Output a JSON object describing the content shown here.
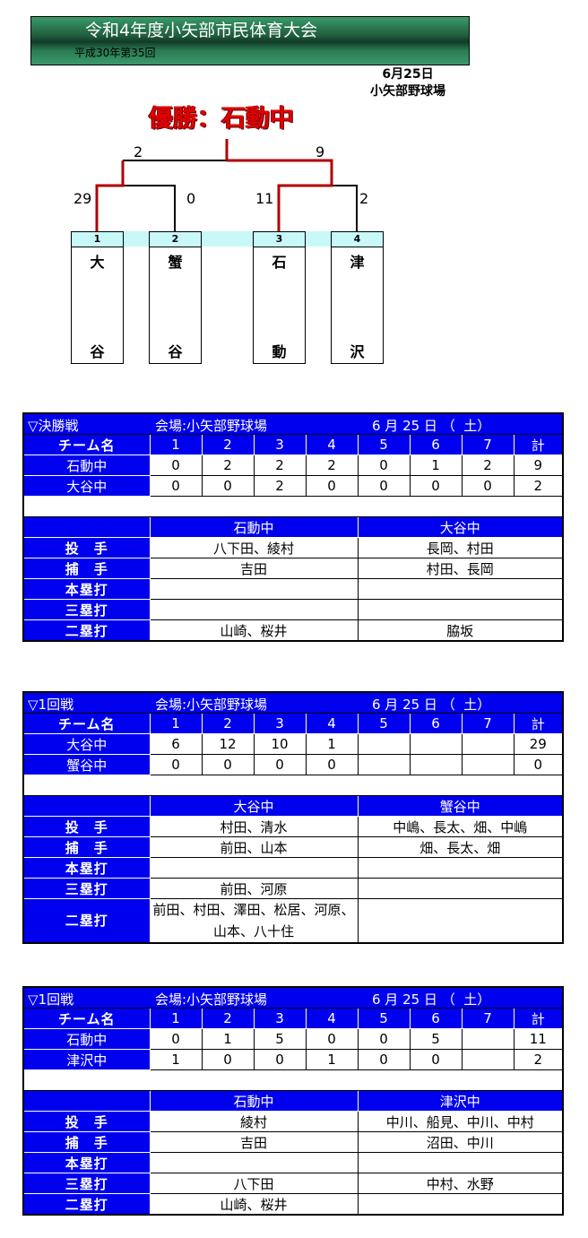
{
  "header": {
    "title": "令和4年度小矢部市民体育大会",
    "overlay_text": "平成30年第35回",
    "date": "6月25日",
    "venue": "小矢部野球場"
  },
  "champion": "優勝：石動中",
  "bracket": {
    "teams": [
      {
        "seed": "1",
        "top": "大",
        "bottom": "谷"
      },
      {
        "seed": "2",
        "top": "蟹",
        "bottom": "谷"
      },
      {
        "seed": "3",
        "top": "石",
        "bottom": "動"
      },
      {
        "seed": "4",
        "top": "津",
        "bottom": "沢"
      }
    ],
    "scores": {
      "r1_team1": "29",
      "r1_team2": "0",
      "r1_team3": "11",
      "r1_team4": "2",
      "final_left": "2",
      "final_right": "9"
    },
    "winner_color": "#b00000"
  },
  "colors": {
    "header_blue": "#0000ee",
    "band": "#c8f8f8"
  },
  "games": [
    {
      "round": "▽決勝戦",
      "venue": "会場:小矢部野球場",
      "date": "6 月 25 日 （  土）",
      "header": [
        "チーム名",
        "1",
        "2",
        "3",
        "4",
        "5",
        "6",
        "7",
        "計"
      ],
      "lines": [
        [
          "石動中",
          "0",
          "2",
          "2",
          "2",
          "0",
          "1",
          "2",
          "9"
        ],
        [
          "大谷中",
          "0",
          "0",
          "2",
          "0",
          "0",
          "0",
          "0",
          "2"
        ]
      ],
      "teams": [
        "石動中",
        "大谷中"
      ],
      "stats": [
        [
          "投　手",
          "八下田、綾村",
          "長岡、村田"
        ],
        [
          "捕　手",
          "吉田",
          "村田、長岡"
        ],
        [
          "本塁打",
          "",
          ""
        ],
        [
          "三塁打",
          "",
          ""
        ],
        [
          "二塁打",
          "山崎、桜井",
          "脇坂"
        ]
      ]
    },
    {
      "round": "▽1回戦",
      "venue": "会場:小矢部野球場",
      "date": "6 月 25 日 （  土）",
      "header": [
        "チーム名",
        "1",
        "2",
        "3",
        "4",
        "5",
        "6",
        "7",
        "計"
      ],
      "lines": [
        [
          "大谷中",
          "6",
          "12",
          "10",
          "1",
          "",
          "",
          "",
          "29"
        ],
        [
          "蟹谷中",
          "0",
          "0",
          "0",
          "0",
          "",
          "",
          "",
          "0"
        ]
      ],
      "teams": [
        "大谷中",
        "蟹谷中"
      ],
      "stats": [
        [
          "投　手",
          "村田、清水",
          "中嶋、長太、畑、中嶋"
        ],
        [
          "捕　手",
          "前田、山本",
          "畑、長太、畑"
        ],
        [
          "本塁打",
          "",
          ""
        ],
        [
          "三塁打",
          "前田、河原",
          ""
        ],
        [
          "二塁打",
          "前田、村田、澤田、松居、河原、山本、八十住",
          ""
        ]
      ]
    },
    {
      "round": "▽1回戦",
      "venue": "会場:小矢部野球場",
      "date": "6 月 25 日 （  土）",
      "header": [
        "チーム名",
        "1",
        "2",
        "3",
        "4",
        "5",
        "6",
        "7",
        "計"
      ],
      "lines": [
        [
          "石動中",
          "0",
          "1",
          "5",
          "0",
          "0",
          "5",
          "",
          "11"
        ],
        [
          "津沢中",
          "1",
          "0",
          "0",
          "1",
          "0",
          "0",
          "",
          "2"
        ]
      ],
      "teams": [
        "石動中",
        "津沢中"
      ],
      "stats": [
        [
          "投　手",
          "綾村",
          "中川、船見、中川、中村"
        ],
        [
          "捕　手",
          "吉田",
          "沼田、中川"
        ],
        [
          "本塁打",
          "",
          ""
        ],
        [
          "三塁打",
          "八下田",
          "中村、水野"
        ],
        [
          "二塁打",
          "山崎、桜井",
          ""
        ]
      ]
    }
  ]
}
